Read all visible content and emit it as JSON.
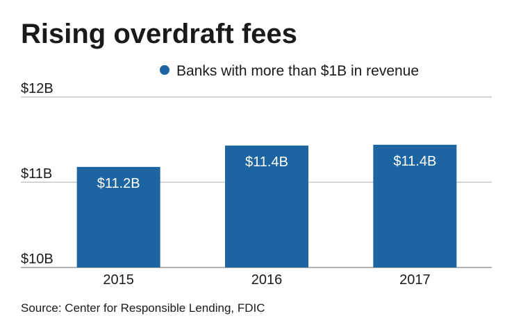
{
  "chart_data": {
    "type": "bar",
    "title": "Rising overdraft fees",
    "legend": "Banks with more than $1B in revenue",
    "categories": [
      "2015",
      "2016",
      "2017"
    ],
    "values": [
      11.18,
      11.43,
      11.44
    ],
    "value_labels": [
      "$11.2B",
      "$11.4B",
      "$11.4B"
    ],
    "color": "#1d65a0",
    "ylim": [
      10,
      12
    ],
    "yticks": [
      {
        "value": 10,
        "label": "$10B"
      },
      {
        "value": 11,
        "label": "$11B"
      },
      {
        "value": 12,
        "label": "$12B"
      }
    ],
    "grid": true,
    "source": "Source: Center for Responsible Lending, FDIC"
  }
}
